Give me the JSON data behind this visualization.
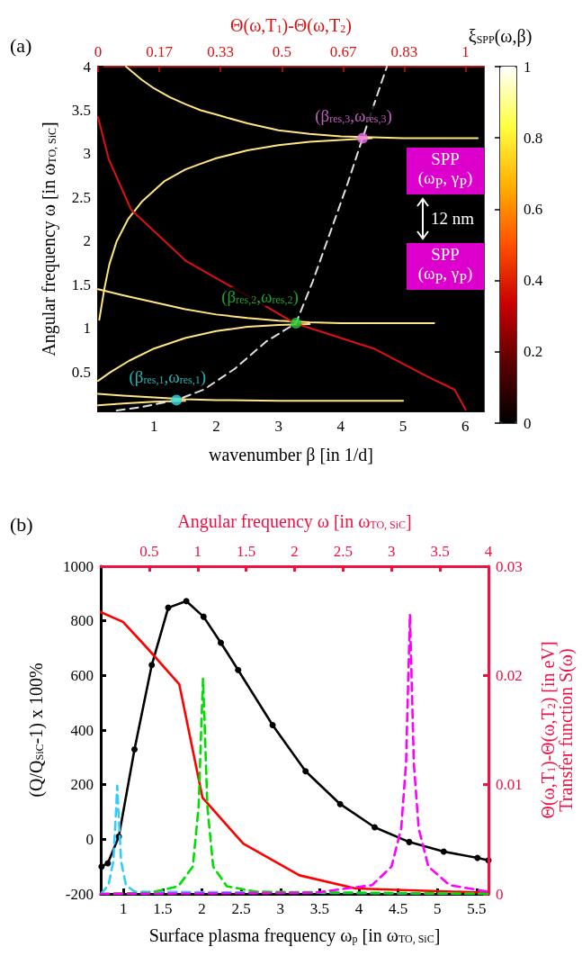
{
  "chart_data": [
    {
      "type": "line",
      "title": "(a)",
      "xlabel": "wavenumber β [in 1/d]",
      "ylabel": "Angular frequency ω [in ω$_{TO, SiC}$]",
      "x2label": "Θ(ω,T$_{1}$)-Θ(ω,T$_{2}$)",
      "clabel": "ξ$_{SPP}$(ω,β)",
      "xlim": [
        0.1,
        6.3
      ],
      "xticks": [
        1,
        2,
        3,
        4,
        5,
        6
      ],
      "x2lim": [
        0,
        1.05
      ],
      "x2ticks": [
        0,
        {
          "value": 0.167,
          "label": "0.17"
        },
        {
          "value": 0.333,
          "label": "0.33"
        },
        0.5,
        {
          "value": 0.667,
          "label": "0.67"
        },
        {
          "value": 0.833,
          "label": "0.83"
        },
        1
      ],
      "ylim": [
        0.05,
        4
      ],
      "yticks": [
        0.5,
        1,
        1.5,
        2,
        2.5,
        3,
        3.5,
        4
      ],
      "clim": [
        0,
        1
      ],
      "cticks": [
        0,
        0.2,
        0.4,
        0.6,
        0.8,
        1
      ],
      "annotations": [
        "SPP\n(ω$_{P}$, γ$_{P}$)",
        "12 nm",
        "SPP\n(ω$_{P}$, γ$_{P}$)"
      ],
      "series": [
        {
          "color": "#ffe680",
          "x": [
            0.55,
            0.8,
            1,
            1.25,
            1.5,
            1.75,
            2,
            2.5,
            3,
            3.5,
            4,
            4.5,
            5,
            5.5,
            6.2
          ],
          "values": [
            4,
            3.85,
            3.75,
            3.65,
            3.57,
            3.5,
            3.45,
            3.35,
            3.27,
            3.23,
            3.2,
            3.19,
            3.18,
            3.18,
            3.18
          ]
        },
        {
          "color": "#ffe680",
          "x": [
            0.12,
            0.2,
            0.28,
            0.4,
            0.58,
            0.8,
            1.17,
            1.5,
            1.72,
            2,
            2.5,
            3,
            3.5,
            4,
            4.5
          ],
          "values": [
            1.1,
            1.45,
            1.73,
            2,
            2.25,
            2.45,
            2.69,
            2.82,
            2.88,
            2.95,
            3.04,
            3.1,
            3.14,
            3.16,
            3.18
          ]
        },
        {
          "color": "#ffe680",
          "x": [
            0.1,
            0.5,
            1,
            1.5,
            2,
            2.5,
            3,
            3.5,
            4,
            4.5,
            5,
            5.5
          ],
          "values": [
            1.45,
            1.38,
            1.3,
            1.22,
            1.16,
            1.12,
            1.09,
            1.07,
            1.06,
            1.06,
            1.06,
            1.06
          ]
        },
        {
          "color": "#ffe680",
          "x": [
            0.1,
            0.3,
            0.6,
            1,
            1.5,
            2,
            2.5,
            3,
            3.5
          ],
          "values": [
            0.4,
            0.5,
            0.63,
            0.77,
            0.89,
            0.97,
            1.02,
            1.04,
            1.05
          ]
        },
        {
          "color": "#ffe680",
          "x": [
            0.1,
            0.5,
            1,
            1.5,
            2,
            3,
            4,
            5
          ],
          "values": [
            0.25,
            0.23,
            0.21,
            0.19,
            0.18,
            0.17,
            0.17,
            0.17
          ]
        },
        {
          "color": "#ffe680",
          "x": [
            0.1,
            0.5,
            1,
            1.5
          ],
          "values": [
            0.12,
            0.14,
            0.16,
            0.17
          ]
        },
        {
          "axis": "x2",
          "color": "#dd1111",
          "x": [
            0,
            0.029,
            0.09,
            0.24,
            0.45,
            0.535,
            0.75,
            0.9,
            0.97,
            1
          ],
          "values": [
            3.42,
            2.94,
            2.36,
            1.77,
            1.27,
            1.06,
            0.77,
            0.44,
            0.3,
            0.07
          ]
        },
        {
          "line_style": "dashed",
          "color": "#e0e0e0",
          "x": [
            0.4,
            0.8,
            1.36,
            1.8,
            2.3,
            2.8,
            3.28,
            3.55,
            3.9,
            4.1,
            4.35,
            4.74
          ],
          "values": [
            0.06,
            0.1,
            0.18,
            0.3,
            0.54,
            0.85,
            1.06,
            1.54,
            2.24,
            2.64,
            3.18,
            4
          ]
        },
        {
          "type": "scatter",
          "name": "(β$_{res,1}$,ω$_{res,1}$)",
          "color": "#33dddd",
          "x": [
            1.36
          ],
          "values": [
            0.18
          ]
        },
        {
          "type": "scatter",
          "name": "(β$_{res,2}$,ω$_{res,2}$)",
          "color": "#22cc33",
          "x": [
            3.28
          ],
          "values": [
            1.06
          ]
        },
        {
          "type": "scatter",
          "name": "(β$_{res,3}$,ω$_{res,3}$)",
          "color": "#ee77ee",
          "x": [
            4.35
          ],
          "values": [
            3.18
          ]
        }
      ]
    },
    {
      "type": "line",
      "title": "(b)",
      "xlabel": "Surface plasma frequency ω$_{p}$ [in ω$_{TO, SiC}$]",
      "ylabel": "(Q/Q$_{SiC}$-1) x 100%",
      "xlim": [
        0.71,
        5.65
      ],
      "xticks": [
        1,
        1.5,
        2,
        2.5,
        3,
        3.5,
        4,
        4.5,
        5,
        5.5
      ],
      "ylim": [
        -200,
        1000
      ],
      "yticks": [
        -200,
        0,
        200,
        400,
        600,
        800,
        1000
      ],
      "series": [
        {
          "color": "#000000",
          "marker": "circle",
          "x": [
            0.72,
            0.8,
            0.94,
            1.14,
            1.36,
            1.57,
            1.8,
            2.02,
            2.24,
            2.46,
            2.9,
            3.32,
            3.76,
            4.2,
            4.64,
            5.08,
            5.51,
            5.65
          ],
          "values": [
            -100,
            -88,
            10,
            329,
            638,
            848,
            872,
            815,
            720,
            620,
            418,
            249,
            129,
            44,
            -10,
            -45,
            -68,
            -77
          ]
        }
      ]
    },
    {
      "type": "line",
      "xlabel": "Angular frequency ω [in ω$_{TO, SiC}$]",
      "ylabel": "Θ(ω,T$_{1}$)-Θ(ω,T$_{2}$) [in eV]\nTransfer function S(ω)",
      "xlim": [
        0,
        4
      ],
      "xticks": [
        0.5,
        1,
        1.5,
        2,
        2.5,
        3,
        3.5,
        4
      ],
      "ylim": [
        0,
        0.03
      ],
      "yticks": [
        0,
        0.01,
        0.02,
        0.03
      ],
      "series": [
        {
          "color": "#ff0000",
          "x": [
            0,
            0.23,
            0.48,
            0.81,
            1.05,
            1.47,
            2.05,
            2.63,
            3.99
          ],
          "values": [
            0.0258,
            0.0249,
            0.0225,
            0.0192,
            0.0088,
            0.0046,
            0.0017,
            0.0005,
            0.0001
          ]
        },
        {
          "color": "#33ccff",
          "line_style": "dashed",
          "x": [
            0,
            0.08,
            0.13,
            0.16,
            0.17,
            0.18,
            0.21,
            0.26,
            0.35,
            4
          ],
          "values": [
            0,
            0.0008,
            0.003,
            0.008,
            0.0099,
            0.008,
            0.003,
            0.0008,
            0.0002,
            0
          ]
        },
        {
          "color": "#00dd00",
          "line_style": "dashed",
          "x": [
            0,
            0.5,
            0.8,
            0.95,
            1.01,
            1.04,
            1.055,
            1.07,
            1.1,
            1.16,
            1.3,
            1.6,
            4
          ],
          "values": [
            0,
            0.0001,
            0.0007,
            0.0025,
            0.008,
            0.016,
            0.0197,
            0.016,
            0.008,
            0.0025,
            0.0007,
            0.0002,
            0
          ]
        },
        {
          "color": "#ff00ff",
          "line_style": "dashed",
          "x": [
            0,
            2.2,
            2.8,
            3,
            3.1,
            3.15,
            3.19,
            3.23,
            3.28,
            3.38,
            3.6,
            4
          ],
          "values": [
            0,
            0.0001,
            0.0008,
            0.0025,
            0.006,
            0.012,
            0.0256,
            0.012,
            0.006,
            0.0025,
            0.0008,
            0.0002
          ]
        }
      ]
    }
  ]
}
